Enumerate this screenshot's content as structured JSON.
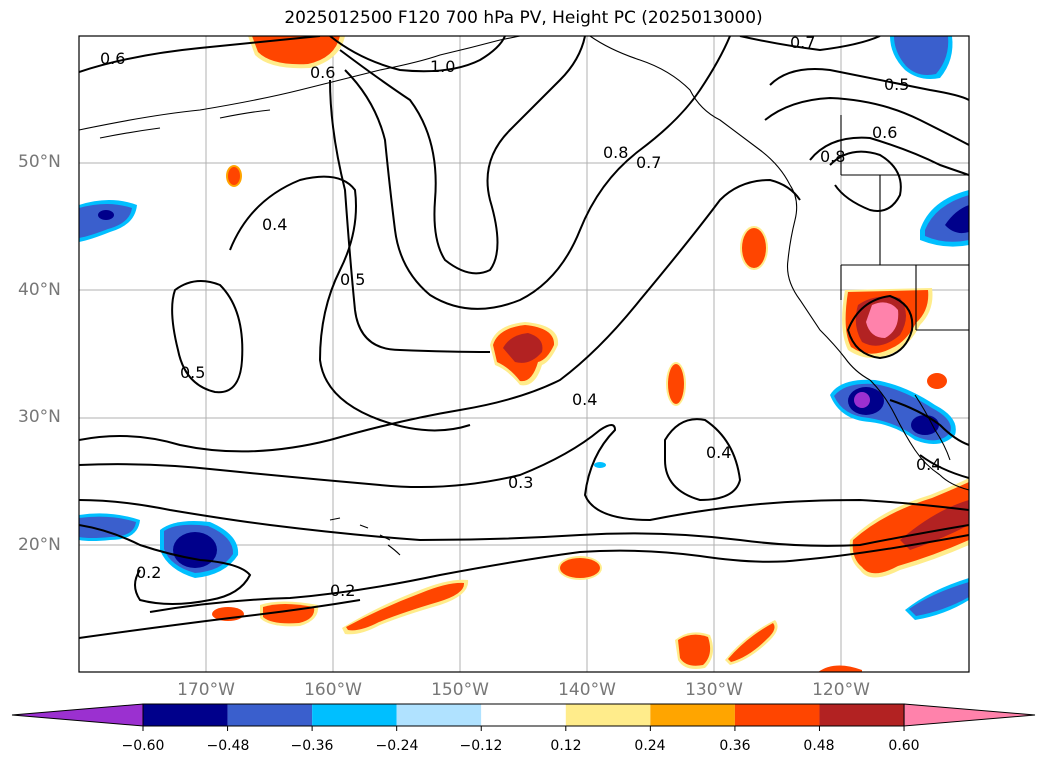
{
  "title": "2025012500 F120 700 hPa PV, Height PC (2025013000)",
  "lat_labels": [
    "50°N",
    "40°N",
    "30°N",
    "20°N"
  ],
  "lon_labels": [
    "170°W",
    "160°W",
    "150°W",
    "140°W",
    "130°W",
    "120°W"
  ],
  "contour_labels": [
    "0.6",
    "0.6",
    "1.0",
    "0.7",
    "0.5",
    "0.6",
    "0.8",
    "0.8",
    "0.7",
    "0.4",
    "0.5",
    "0.5",
    "0.4",
    "0.4",
    "0.3",
    "0.2",
    "0.2",
    "0.4"
  ],
  "colorbar": {
    "tick_labels": [
      "−0.60",
      "−0.48",
      "−0.36",
      "−0.24",
      "−0.12",
      "0.12",
      "0.24",
      "0.36",
      "0.48",
      "0.60"
    ],
    "colors": [
      "#9b30d0",
      "#00008b",
      "#3a5fcd",
      "#00bfff",
      "#b0e2ff",
      "#ffffff",
      "#ffec8b",
      "#ffa500",
      "#ff4500",
      "#b22222",
      "#ff82ab"
    ]
  }
}
